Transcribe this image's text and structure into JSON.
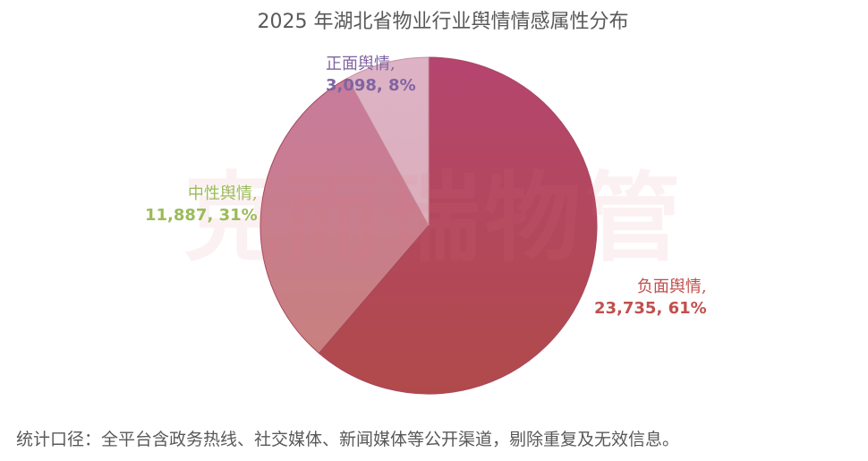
{
  "chart_data": {
    "type": "pie",
    "title": "2025 年湖北省物业行业舆情情感属性分布",
    "start_angle": "12 o'clock",
    "direction": "clockwise",
    "slices": [
      {
        "name": "负面舆情",
        "value": 23735,
        "percent": 61,
        "value_label": "23,735, 61%",
        "color": "#b24760",
        "label_color": "#c0504d"
      },
      {
        "name": "中性舆情",
        "value": 11887,
        "percent": 31,
        "value_label": "11,887, 31%",
        "color": "#c87b90",
        "label_color": "#9bbb59"
      },
      {
        "name": "正面舆情",
        "value": 3098,
        "percent": 8,
        "value_label": "3,098, 8%",
        "color": "#dcb1c1",
        "label_color": "#8064a2"
      }
    ],
    "legend": "none (data labels on chart)"
  },
  "title": "2025 年湖北省物业行业舆情情感属性分布",
  "watermark": "克而瑞物管",
  "labels": {
    "positive": {
      "name": "正面舆情,",
      "value": "3,098, 8%"
    },
    "neutral": {
      "name": "中性舆情,",
      "value": "11,887, 31%"
    },
    "negative": {
      "name": "负面舆情,",
      "value": "23,735, 61%"
    }
  },
  "footnote": "统计口径：全平台含政务热线、社交媒体、新闻媒体等公开渠道，剔除重复及无效信息。"
}
